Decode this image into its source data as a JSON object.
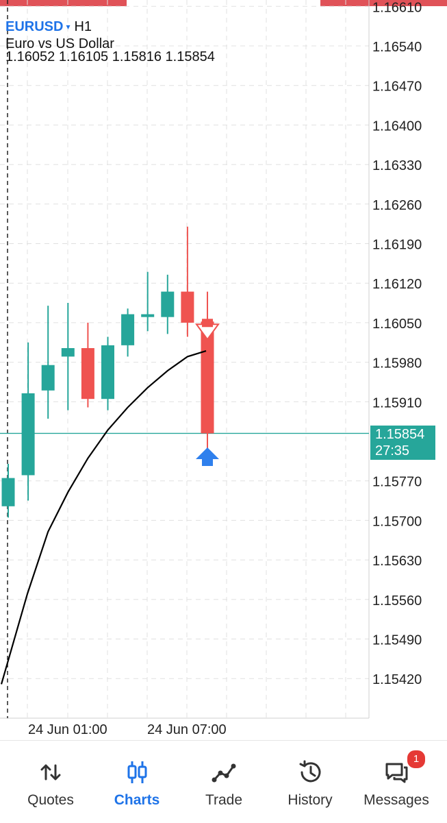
{
  "header": {
    "symbol": "EURUSD",
    "dropdown_glyph": "▾",
    "timeframe": "H1",
    "description": "Euro vs US Dollar",
    "ohlc": "1.16052 1.16105 1.15816 1.15854"
  },
  "chart_data": {
    "type": "candlestick",
    "y_axis_labels": [
      "1.16610",
      "1.16540",
      "1.16470",
      "1.16400",
      "1.16330",
      "1.16260",
      "1.16190",
      "1.16120",
      "1.16050",
      "1.15980",
      "1.15910",
      "1.15770",
      "1.15700",
      "1.15630",
      "1.15560",
      "1.15490",
      "1.15420"
    ],
    "x_axis_labels": [
      "24 Jun 01:00",
      "24 Jun 07:00"
    ],
    "current_price": "1.15854",
    "countdown": "27:35",
    "candles": [
      {
        "open": 1.15725,
        "high": 1.158,
        "low": 1.15705,
        "close": 1.15775
      },
      {
        "open": 1.1578,
        "high": 1.16015,
        "low": 1.15735,
        "close": 1.15925
      },
      {
        "open": 1.1593,
        "high": 1.1608,
        "low": 1.1588,
        "close": 1.15975
      },
      {
        "open": 1.1599,
        "high": 1.16085,
        "low": 1.15895,
        "close": 1.16005
      },
      {
        "open": 1.16005,
        "high": 1.1605,
        "low": 1.159,
        "close": 1.15915
      },
      {
        "open": 1.15915,
        "high": 1.16025,
        "low": 1.15895,
        "close": 1.1601
      },
      {
        "open": 1.1601,
        "high": 1.16075,
        "low": 1.1599,
        "close": 1.16065
      },
      {
        "open": 1.1606,
        "high": 1.1614,
        "low": 1.16035,
        "close": 1.16065
      },
      {
        "open": 1.1606,
        "high": 1.16135,
        "low": 1.1603,
        "close": 1.16105
      },
      {
        "open": 1.16105,
        "high": 1.1622,
        "low": 1.16025,
        "close": 1.1605
      },
      {
        "open": 1.16052,
        "high": 1.16105,
        "low": 1.15816,
        "close": 1.15854
      }
    ],
    "moving_average": [
      1.1541,
      1.1557,
      1.1568,
      1.1575,
      1.1581,
      1.1586,
      1.159,
      1.15935,
      1.15965,
      1.1599,
      1.16
    ],
    "colors": {
      "bull": "#26a69a",
      "bear": "#ef5350",
      "ma": "#000000",
      "grid": "#e0e0e0",
      "signal_up": "#2f80ed",
      "signal_down": "#ef5350"
    }
  },
  "nav": {
    "items": [
      {
        "label": "Quotes",
        "icon": "quotes-arrows-icon",
        "active": false
      },
      {
        "label": "Charts",
        "icon": "charts-candles-icon",
        "active": true
      },
      {
        "label": "Trade",
        "icon": "trade-line-icon",
        "active": false
      },
      {
        "label": "History",
        "icon": "history-clock-icon",
        "active": false
      },
      {
        "label": "Messages",
        "icon": "messages-chat-icon",
        "active": false,
        "badge": "1"
      }
    ]
  }
}
